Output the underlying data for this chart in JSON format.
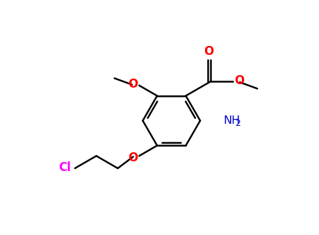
{
  "bg_color": "#ffffff",
  "bond_color": "#000000",
  "bond_width": 1.8,
  "figsize": [
    4.59,
    3.38
  ],
  "dpi": 100,
  "colors": {
    "O": "#ff0000",
    "N": "#0000cd",
    "Cl": "#ff00ff",
    "C": "#000000"
  },
  "font_size": 10.5,
  "xlim": [
    -3.2,
    3.0
  ],
  "ylim": [
    -2.0,
    2.0
  ]
}
